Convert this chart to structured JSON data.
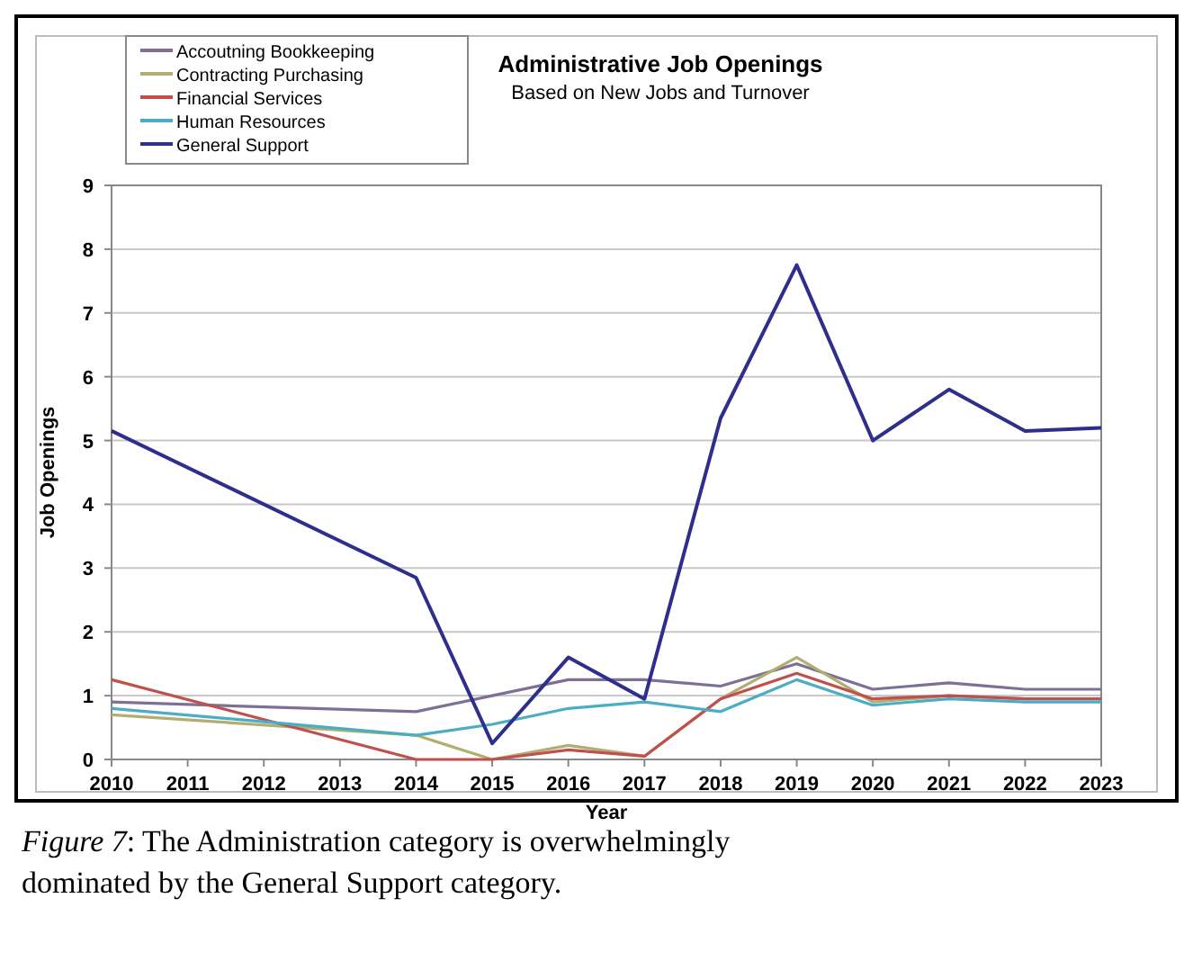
{
  "chart_data": {
    "type": "line",
    "title": "Administrative Job Openings",
    "subtitle": "Based on New Jobs and Turnover",
    "xlabel": "Year",
    "ylabel": "Job Openings",
    "x": [
      2010,
      2014,
      2015,
      2016,
      2017,
      2018,
      2019,
      2020,
      2021,
      2022,
      2023
    ],
    "xlim": [
      2010,
      2023
    ],
    "xticks": [
      2010,
      2011,
      2012,
      2013,
      2014,
      2015,
      2016,
      2017,
      2018,
      2019,
      2020,
      2021,
      2022,
      2023
    ],
    "ylim": [
      0,
      9
    ],
    "yticks": [
      0,
      1,
      2,
      3,
      4,
      5,
      6,
      7,
      8,
      9
    ],
    "grid": "y",
    "legend": "top left",
    "marker": "none",
    "line_style": "solid",
    "series": [
      {
        "name": "Accoutning Bookkeeping",
        "color": "#7e6f96",
        "values": [
          0.9,
          0.75,
          1.0,
          1.25,
          1.25,
          1.15,
          1.5,
          1.1,
          1.2,
          1.1,
          1.1
        ]
      },
      {
        "name": "Contracting Purchasing",
        "color": "#b3ad72",
        "values": [
          0.7,
          0.38,
          0,
          0.22,
          0.05,
          0.95,
          1.6,
          0.9,
          1.0,
          0.95,
          0.95
        ]
      },
      {
        "name": "Financial Services",
        "color": "#c0504d",
        "values": [
          1.25,
          0,
          0,
          0.15,
          0.05,
          0.95,
          1.35,
          0.95,
          1.0,
          0.95,
          0.95
        ]
      },
      {
        "name": "Human Resources",
        "color": "#4bacc6",
        "values": [
          0.8,
          0.38,
          0.55,
          0.8,
          0.9,
          0.75,
          1.25,
          0.85,
          0.95,
          0.9,
          0.9
        ]
      },
      {
        "name": "General Support",
        "color": "#2e2e8c",
        "values": [
          5.15,
          2.85,
          0.25,
          1.6,
          0.95,
          5.35,
          7.75,
          5.0,
          5.8,
          5.15,
          5.2
        ]
      }
    ],
    "annotations": [
      "Figure 7: The Administration category is overwhelmingly dominated by the General Support category."
    ]
  }
}
